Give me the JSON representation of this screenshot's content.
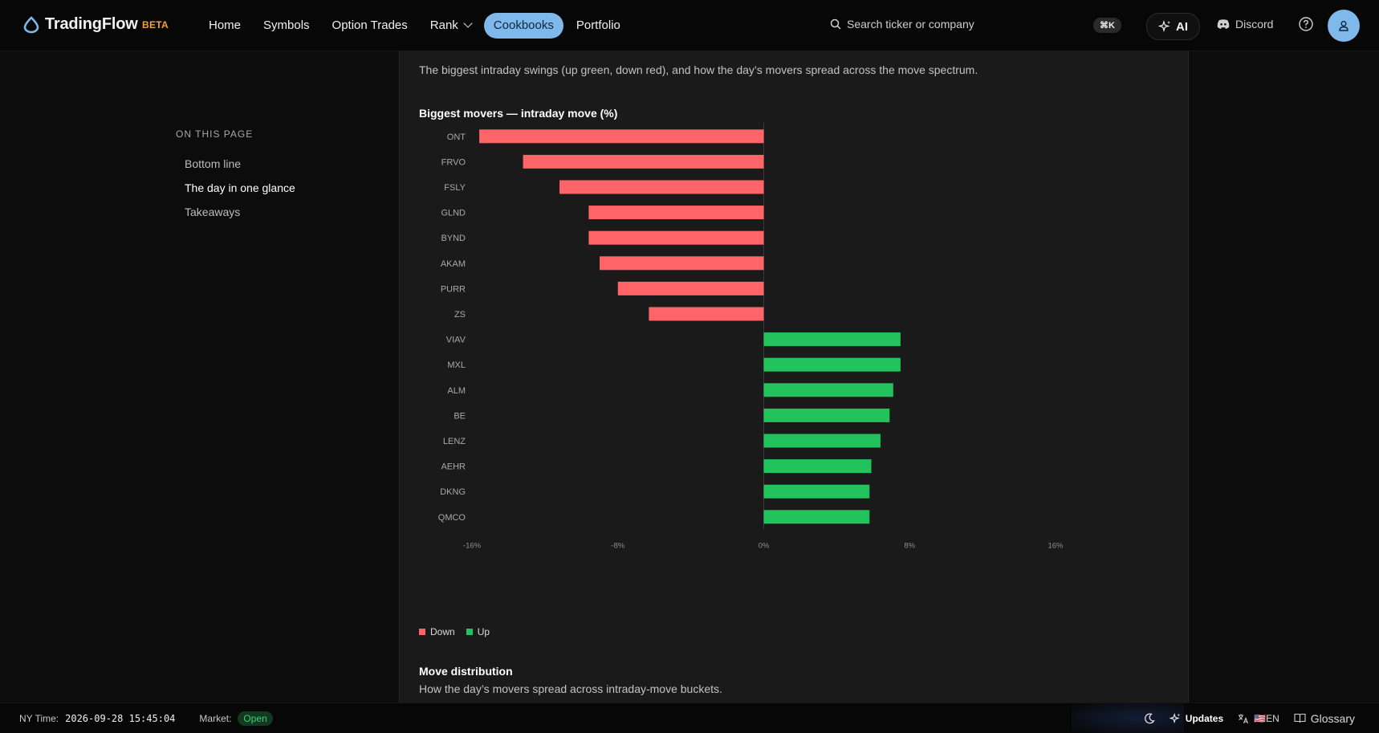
{
  "app": {
    "name": "TradingFlow",
    "badge": "BETA"
  },
  "nav": {
    "items": [
      {
        "label": "Home"
      },
      {
        "label": "Symbols"
      },
      {
        "label": "Option Trades"
      },
      {
        "label": "Rank"
      },
      {
        "label": "Cookbooks"
      },
      {
        "label": "Portfolio"
      }
    ],
    "active": "Cookbooks"
  },
  "search": {
    "placeholder": "Search ticker or company",
    "shortcut": "⌘K"
  },
  "header": {
    "ai_label": "AI",
    "discord_label": "Discord"
  },
  "toc": {
    "title": "ON THIS PAGE",
    "items": [
      {
        "label": "Bottom line"
      },
      {
        "label": "The day in one glance"
      },
      {
        "label": "Takeaways"
      }
    ]
  },
  "content": {
    "lede": "The biggest intraday swings (up green, down red), and how the day’s movers spread across the move spectrum.",
    "chart_title": "Biggest movers — intraday move (%)",
    "legend": {
      "down": "Down",
      "up": "Up"
    },
    "section2_title": "Move distribution",
    "section2_sub": "How the day’s movers spread across intraday-move buckets."
  },
  "chart_data": {
    "type": "bar",
    "orientation": "horizontal",
    "title": "Biggest movers — intraday move (%)",
    "categories": [
      "ONT",
      "FRVO",
      "FSLY",
      "GLND",
      "BYND",
      "AKAM",
      "PURR",
      "ZS",
      "VIAV",
      "MXL",
      "ALM",
      "BE",
      "LENZ",
      "AEHR",
      "DKNG",
      "QMCO"
    ],
    "values": [
      -15.6,
      -13.2,
      -11.2,
      -9.6,
      -9.6,
      -9.0,
      -8.0,
      -6.3,
      7.5,
      7.5,
      7.1,
      6.9,
      6.4,
      5.9,
      5.8,
      5.8
    ],
    "xlim": [
      -16,
      16
    ],
    "xticks": [
      "-16%",
      "-8%",
      "0%",
      "8%",
      "16%"
    ],
    "xtick_values": [
      -16,
      -8,
      0,
      8,
      16
    ],
    "series": [
      {
        "name": "Down",
        "color": "#ff6468"
      },
      {
        "name": "Up",
        "color": "#22c25d"
      }
    ],
    "legend_position": "bottom-left",
    "grid": false
  },
  "status": {
    "ny_time_label": "NY Time:",
    "ny_time": "2026-09-28 15:45:04",
    "market_label": "Market:",
    "market_status": "Open",
    "updates": "Updates",
    "language": "🇺🇸EN",
    "glossary": "Glossary"
  },
  "colors": {
    "accent": "#7fb8ea",
    "down": "#ff6468",
    "up": "#22c25d",
    "beta": "#f0a33a"
  }
}
